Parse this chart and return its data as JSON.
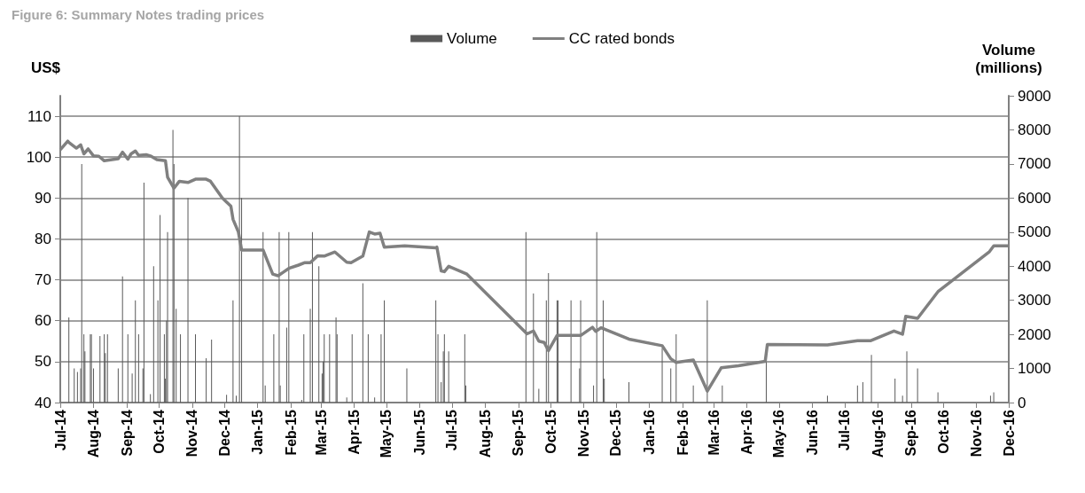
{
  "chart_data": {
    "type": "bar",
    "title": "Figure 6: Summary Notes trading prices",
    "ylabel": "US$",
    "y2label": "Volume\n(millions)",
    "legend": "top",
    "grid": "y",
    "xlim": [
      "2014-07-01",
      "2016-12-01"
    ],
    "xticks": [
      {
        "value": "2014-07-01",
        "label": "Jul-14"
      },
      {
        "value": "2014-08-01",
        "label": "Aug-14"
      },
      {
        "value": "2014-09-01",
        "label": "Sep-14"
      },
      {
        "value": "2014-10-01",
        "label": "Oct-14"
      },
      {
        "value": "2014-11-01",
        "label": "Nov-14"
      },
      {
        "value": "2014-12-01",
        "label": "Dec-14"
      },
      {
        "value": "2015-01-01",
        "label": "Jan-15"
      },
      {
        "value": "2015-02-01",
        "label": "Feb-15"
      },
      {
        "value": "2015-03-01",
        "label": "Mar-15"
      },
      {
        "value": "2015-04-01",
        "label": "Apr-15"
      },
      {
        "value": "2015-05-01",
        "label": "May-15"
      },
      {
        "value": "2015-06-01",
        "label": "Jun-15"
      },
      {
        "value": "2015-07-01",
        "label": "Jul-15"
      },
      {
        "value": "2015-08-01",
        "label": "Aug-15"
      },
      {
        "value": "2015-09-01",
        "label": "Sep-15"
      },
      {
        "value": "2015-10-01",
        "label": "Oct-15"
      },
      {
        "value": "2015-11-01",
        "label": "Nov-15"
      },
      {
        "value": "2015-12-01",
        "label": "Dec-15"
      },
      {
        "value": "2016-01-01",
        "label": "Jan-16"
      },
      {
        "value": "2016-02-01",
        "label": "Feb-16"
      },
      {
        "value": "2016-03-01",
        "label": "Mar-16"
      },
      {
        "value": "2016-04-01",
        "label": "Apr-16"
      },
      {
        "value": "2016-05-01",
        "label": "May-16"
      },
      {
        "value": "2016-06-01",
        "label": "Jun-16"
      },
      {
        "value": "2016-07-01",
        "label": "Jul-16"
      },
      {
        "value": "2016-08-01",
        "label": "Aug-16"
      },
      {
        "value": "2016-09-01",
        "label": "Sep-16"
      },
      {
        "value": "2016-10-01",
        "label": "Oct-16"
      },
      {
        "value": "2016-11-01",
        "label": "Nov-16"
      },
      {
        "value": "2016-12-01",
        "label": "Dec-16"
      }
    ],
    "ylim": [
      40,
      115
    ],
    "yticks": [
      40,
      50,
      60,
      70,
      80,
      90,
      100,
      110
    ],
    "y2lim": [
      0,
      9000
    ],
    "y2ticks": [
      0,
      1000,
      2000,
      3000,
      4000,
      5000,
      6000,
      7000,
      8000,
      9000
    ],
    "series": [
      {
        "name": "Volume",
        "axis": "y2",
        "color": "#595959",
        "x": [
          "2014-07-09",
          "2014-07-14",
          "2014-07-17",
          "2014-07-20",
          "2014-07-21",
          "2014-07-23",
          "2014-07-24",
          "2014-07-29",
          "2014-07-30",
          "2014-08-01",
          "2014-08-07",
          "2014-08-11",
          "2014-08-12",
          "2014-08-14",
          "2014-08-24",
          "2014-08-28",
          "2014-09-02",
          "2014-09-06",
          "2014-09-09",
          "2014-09-12",
          "2014-09-16",
          "2014-09-17",
          "2014-09-23",
          "2014-09-26",
          "2014-09-30",
          "2014-10-02",
          "2014-10-06",
          "2014-10-07",
          "2014-10-08",
          "2014-10-09",
          "2014-10-14",
          "2014-10-15",
          "2014-10-17",
          "2014-10-21",
          "2014-10-28",
          "2014-11-04",
          "2014-11-14",
          "2014-11-19",
          "2014-12-03",
          "2014-12-09",
          "2014-12-12",
          "2014-12-15",
          "2014-12-17",
          "2015-01-06",
          "2015-01-08",
          "2015-01-16",
          "2015-01-21",
          "2015-01-22",
          "2015-01-28",
          "2015-01-30",
          "2015-02-11",
          "2015-02-13",
          "2015-02-19",
          "2015-02-21",
          "2015-02-27",
          "2015-03-02",
          "2015-03-03",
          "2015-03-04",
          "2015-03-09",
          "2015-03-15",
          "2015-03-16",
          "2015-03-25",
          "2015-03-30",
          "2015-04-09",
          "2015-04-14",
          "2015-04-20",
          "2015-04-26",
          "2015-04-29",
          "2015-05-20",
          "2015-06-16",
          "2015-06-18",
          "2015-06-21",
          "2015-06-23",
          "2015-06-24",
          "2015-06-28",
          "2015-07-13",
          "2015-07-14",
          "2015-09-08",
          "2015-09-15",
          "2015-09-20",
          "2015-09-27",
          "2015-09-29",
          "2015-10-07",
          "2015-10-08",
          "2015-10-20",
          "2015-10-28",
          "2015-10-29",
          "2015-11-10",
          "2015-11-13",
          "2015-11-19",
          "2015-11-20",
          "2015-12-13",
          "2016-01-13",
          "2016-01-21",
          "2016-01-26",
          "2016-02-11",
          "2016-02-24",
          "2016-03-09",
          "2016-04-19",
          "2016-06-15",
          "2016-07-13",
          "2016-07-18",
          "2016-07-26",
          "2016-08-17",
          "2016-08-24",
          "2016-08-28",
          "2016-09-07",
          "2016-09-26",
          "2016-11-14",
          "2016-11-17"
        ],
        "values": [
          2500,
          1000,
          900,
          1000,
          7000,
          2000,
          1500,
          2000,
          2000,
          1000,
          1950,
          2000,
          1450,
          2000,
          1000,
          3700,
          2000,
          850,
          3000,
          2000,
          1000,
          6450,
          250,
          4000,
          3000,
          5500,
          2000,
          700,
          2400,
          5000,
          8000,
          7000,
          2750,
          2000,
          6000,
          2000,
          1300,
          1850,
          230,
          3000,
          200,
          8400,
          6000,
          5000,
          500,
          2000,
          5000,
          500,
          2200,
          5000,
          80,
          2000,
          2750,
          5000,
          4000,
          850,
          1200,
          2000,
          2000,
          2500,
          2000,
          150,
          2000,
          3500,
          2000,
          150,
          2000,
          3000,
          1000,
          3000,
          2000,
          600,
          1500,
          2000,
          1500,
          2000,
          500,
          5000,
          3200,
          400,
          3000,
          3800,
          3000,
          3000,
          3000,
          1000,
          3000,
          500,
          5000,
          3000,
          700,
          600,
          1600,
          1000,
          2000,
          500,
          3000,
          500,
          1200,
          200,
          500,
          600,
          1400,
          700,
          200,
          1500,
          1000,
          300,
          200,
          300
        ]
      },
      {
        "name": "CC rated bonds",
        "type": "line",
        "color": "#808080",
        "x": [
          "2014-07-01",
          "2014-07-08",
          "2014-07-09",
          "2014-07-16",
          "2014-07-20",
          "2014-07-23",
          "2014-07-27",
          "2014-08-01",
          "2014-08-06",
          "2014-08-11",
          "2014-08-24",
          "2014-08-28",
          "2014-09-02",
          "2014-09-05",
          "2014-09-09",
          "2014-09-12",
          "2014-09-19",
          "2014-09-23",
          "2014-09-29",
          "2014-10-07",
          "2014-10-09",
          "2014-10-15",
          "2014-10-20",
          "2014-10-28",
          "2014-11-04",
          "2014-11-14",
          "2014-11-18",
          "2014-11-29",
          "2014-12-07",
          "2014-12-09",
          "2014-12-14",
          "2014-12-17",
          "2015-01-06",
          "2015-01-15",
          "2015-01-20",
          "2015-01-25",
          "2015-01-30",
          "2015-02-08",
          "2015-02-14",
          "2015-02-19",
          "2015-02-26",
          "2015-03-04",
          "2015-03-14",
          "2015-03-25",
          "2015-03-29",
          "2015-04-09",
          "2015-04-15",
          "2015-04-20",
          "2015-04-25",
          "2015-04-29",
          "2015-05-18",
          "2015-06-16",
          "2015-06-17",
          "2015-06-21",
          "2015-06-24",
          "2015-06-28",
          "2015-07-15",
          "2015-09-09",
          "2015-09-15",
          "2015-09-20",
          "2015-09-25",
          "2015-09-29",
          "2015-10-07",
          "2015-10-29",
          "2015-11-09",
          "2015-11-12",
          "2015-11-17",
          "2015-12-13",
          "2016-01-13",
          "2016-01-21",
          "2016-01-26",
          "2016-02-11",
          "2016-02-24",
          "2016-03-08",
          "2016-03-24",
          "2016-04-18",
          "2016-04-20",
          "2016-06-15",
          "2016-07-13",
          "2016-07-25",
          "2016-08-16",
          "2016-08-24",
          "2016-08-27",
          "2016-09-07",
          "2016-09-26",
          "2016-11-13",
          "2016-11-17",
          "2016-12-01"
        ],
        "values": [
          101.8,
          103.9,
          103.6,
          102.2,
          103,
          100.8,
          102,
          100.3,
          100.2,
          99.1,
          99.6,
          101.2,
          99.5,
          100.8,
          101.5,
          100.4,
          100.6,
          100.3,
          99.4,
          99.1,
          95.1,
          92.4,
          94.1,
          93.8,
          94.6,
          94.6,
          94.1,
          90,
          88,
          84.8,
          81.7,
          77.3,
          77.3,
          71.4,
          71,
          71.9,
          72.8,
          73.6,
          74.2,
          74.2,
          75.9,
          75.8,
          76.8,
          74.3,
          74.2,
          75.8,
          81.7,
          81.2,
          81.4,
          78,
          78.3,
          77.8,
          78,
          72.2,
          72,
          73.3,
          71.4,
          56.8,
          57.5,
          55,
          54.7,
          52.7,
          56.4,
          56.4,
          58.4,
          57.4,
          58.3,
          55.5,
          53.9,
          50.7,
          49.8,
          50.4,
          42.8,
          48.5,
          49,
          50.1,
          54.2,
          54.1,
          55.1,
          55.1,
          57.5,
          56.7,
          61.1,
          60.6,
          67.1,
          76.9,
          78.3,
          78.3
        ]
      }
    ]
  }
}
